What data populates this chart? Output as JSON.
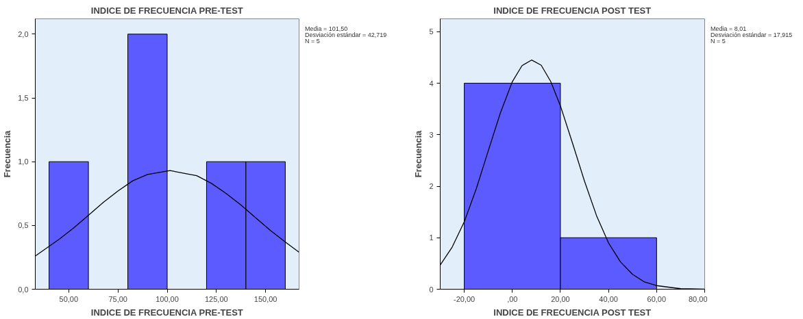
{
  "chart_data": [
    {
      "type": "histogram",
      "title": "INDICE DE FRECUENCIA PRE-TEST",
      "xlabel": "INDICE DE FRECUENCIA PRE-TEST",
      "ylabel": "Frecuencia",
      "color": "#5b5bff",
      "bins": [
        40,
        60,
        80,
        100,
        120,
        140,
        160
      ],
      "values": [
        1,
        0,
        2,
        0,
        1,
        1
      ],
      "xlim": [
        33,
        167
      ],
      "ylim": [
        0,
        2.12
      ],
      "xticks": [
        {
          "value": 50,
          "label": "50,00"
        },
        {
          "value": 75,
          "label": "75,00"
        },
        {
          "value": 100,
          "label": "100,00"
        },
        {
          "value": 125,
          "label": "125,00"
        },
        {
          "value": 150,
          "label": "150,00"
        }
      ],
      "yticks": [
        {
          "value": 0,
          "label": "0,0"
        },
        {
          "value": 0.5,
          "label": "0,5"
        },
        {
          "value": 1,
          "label": "1,0"
        },
        {
          "value": 1.5,
          "label": "1,5"
        },
        {
          "value": 2,
          "label": "2,0"
        }
      ],
      "series": [
        {
          "type": "line",
          "color": "#000000",
          "x": [
            33,
            45,
            52.5,
            60,
            67.5,
            75,
            82.5,
            90,
            101.5,
            115,
            122.5,
            130,
            137.5,
            145,
            152.5,
            160,
            167
          ],
          "values": [
            0.26,
            0.39,
            0.48,
            0.58,
            0.68,
            0.77,
            0.85,
            0.9,
            0.93,
            0.89,
            0.83,
            0.75,
            0.66,
            0.56,
            0.46,
            0.37,
            0.29
          ]
        }
      ],
      "annotations": [
        "Media = 101,50",
        "Desviación estándar = 42,719",
        "N = 5"
      ]
    },
    {
      "type": "histogram",
      "title": "INDICE DE FRECUENCIA POST TEST",
      "xlabel": "INDICE DE FRECUENCIA POST TEST",
      "ylabel": "Frecuencia",
      "color": "#5b5bff",
      "bins": [
        -20,
        20,
        60
      ],
      "values": [
        4,
        1
      ],
      "xlim": [
        -30,
        80
      ],
      "ylim": [
        0,
        5.25
      ],
      "xticks": [
        {
          "value": -20,
          "label": "-20,00"
        },
        {
          "value": 0,
          "label": ",00"
        },
        {
          "value": 20,
          "label": "20,00"
        },
        {
          "value": 40,
          "label": "40,00"
        },
        {
          "value": 60,
          "label": "60,00"
        },
        {
          "value": 80,
          "label": "80,00"
        }
      ],
      "yticks": [
        0,
        1,
        2,
        3,
        4,
        5
      ],
      "series": [
        {
          "type": "line",
          "color": "#000000",
          "x": [
            -30,
            -25,
            -20,
            -15,
            -10,
            -5,
            0,
            4,
            8,
            12,
            16,
            20,
            25,
            30,
            35,
            40,
            45,
            50,
            55,
            60,
            70,
            80
          ],
          "values": [
            0.47,
            0.82,
            1.31,
            1.95,
            2.69,
            3.42,
            4.03,
            4.34,
            4.45,
            4.35,
            4.03,
            3.56,
            2.84,
            2.1,
            1.43,
            0.9,
            0.53,
            0.29,
            0.14,
            0.07,
            0.01,
            0.0
          ]
        }
      ],
      "annotations": [
        "Media = 8,01",
        "Desviación estándar = 17,915",
        "N = 5"
      ]
    }
  ]
}
